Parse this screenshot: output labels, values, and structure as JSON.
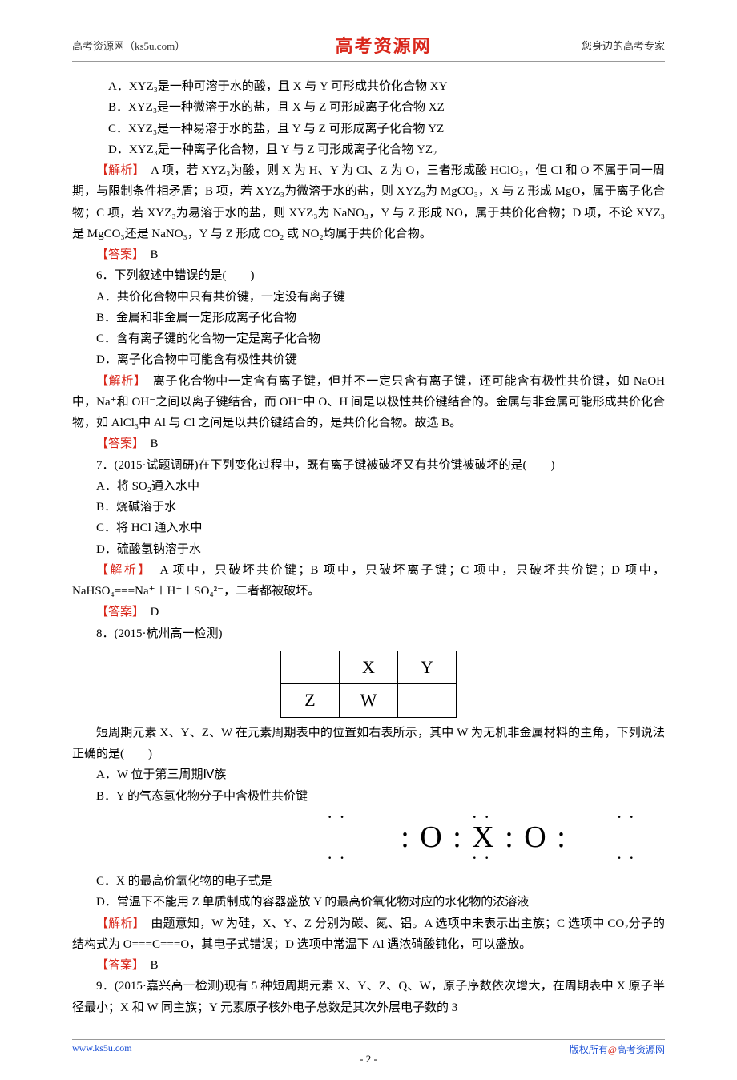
{
  "header": {
    "left": "高考资源网（ks5u.com）",
    "center": "高考资源网",
    "right": "您身边的高考专家"
  },
  "q5": {
    "a": "A．XYZ₃是一种可溶于水的酸，且 X 与 Y 可形成共价化合物 XY",
    "b": "B．XYZ₃是一种微溶于水的盐，且 X 与 Z 可形成离子化合物 XZ",
    "c": "C．XYZ₃是一种易溶于水的盐，且 Y 与 Z 可形成离子化合物 YZ",
    "d": "D．XYZ₃是一种离子化合物，且 Y 与 Z 可形成离子化合物 YZ₂",
    "jiexi_label": "【解析】",
    "jiexi": "　A 项，若 XYZ₃为酸，则 X 为 H、Y 为 Cl、Z 为 O，三者形成酸 HClO₃，但 Cl 和 O 不属于同一周期，与限制条件相矛盾；B 项，若 XYZ₃为微溶于水的盐，则 XYZ₃为 MgCO₃，X 与 Z 形成 MgO，属于离子化合物；C 项，若 XYZ₃为易溶于水的盐，则 XYZ₃为 NaNO₃，Y 与 Z 形成 NO，属于共价化合物；D 项，不论 XYZ₃是 MgCO₃还是 NaNO₃，Y 与 Z 形成 CO₂ 或 NO₂均属于共价化合物。",
    "daan_label": "【答案】",
    "daan": "　B"
  },
  "q6": {
    "stem": "6．下列叙述中错误的是(　　)",
    "a": "A．共价化合物中只有共价键，一定没有离子键",
    "b": "B．金属和非金属一定形成离子化合物",
    "c": "C．含有离子键的化合物一定是离子化合物",
    "d": "D．离子化合物中可能含有极性共价键",
    "jiexi_label": "【解析】",
    "jiexi": "　离子化合物中一定含有离子键，但并不一定只含有离子键，还可能含有极性共价键，如 NaOH 中，Na⁺和 OH⁻之间以离子键结合，而 OH⁻中 O、H 间是以极性共价键结合的。金属与非金属可能形成共价化合物，如 AlCl₃中 Al 与 Cl 之间是以共价键结合的，是共价化合物。故选 B。",
    "daan_label": "【答案】",
    "daan": "　B"
  },
  "q7": {
    "stem": "7．(2015·试题调研)在下列变化过程中，既有离子键被破坏又有共价键被破坏的是(　　)",
    "a": "A．将 SO₂通入水中",
    "b": "B．烧碱溶于水",
    "c": "C．将 HCl 通入水中",
    "d": "D．硫酸氢钠溶于水",
    "jiexi_label": "【解析】",
    "jiexi": "　A 项中，只破坏共价键；B 项中，只破坏离子键；C 项中，只破坏共价键；D 项中，NaHSO₄===Na⁺＋H⁺＋SO₄²⁻，二者都被破坏。",
    "daan_label": "【答案】",
    "daan": "　D"
  },
  "q8": {
    "stem": "8．(2015·杭州高一检测)",
    "table": {
      "r1c1": "",
      "r1c2": "X",
      "r1c3": "Y",
      "r2c1": "Z",
      "r2c2": "W",
      "r2c3": ""
    },
    "para": "短周期元素 X、Y、Z、W 在元素周期表中的位置如右表所示，其中 W 为无机非金属材料的主角，下列说法正确的是(　　)",
    "a": "A．W 位于第三周期Ⅳ族",
    "b": "B．Y 的气态氢化物分子中含极性共价键",
    "lewis_line1": "··　　　　　··　　　　　··",
    "lewis_line2": ": O : X : O :",
    "lewis_line3": "··　　　　　··　　　　　··",
    "c": "C．X 的最高价氧化物的电子式是",
    "d": "D．常温下不能用 Z 单质制成的容器盛放 Y 的最高价氧化物对应的水化物的浓溶液",
    "jiexi_label": "【解析】",
    "jiexi": "　由题意知，W 为硅，X、Y、Z 分别为碳、氮、铝。A 选项中未表示出主族；C 选项中 CO₂分子的结构式为 O===C===O，其电子式错误；D 选项中常温下 Al 遇浓硝酸钝化，可以盛放。",
    "daan_label": "【答案】",
    "daan": "　B"
  },
  "q9": {
    "stem": "9．(2015·嘉兴高一检测)现有 5 种短周期元素 X、Y、Z、Q、W，原子序数依次增大，在周期表中 X 原子半径最小；X 和 W 同主族；Y 元素原子核外电子总数是其次外层电子数的 3"
  },
  "footer": {
    "left": "www.ks5u.com",
    "right_pre": "版权所有",
    "right_at": "@",
    "right_post": "高考资源网",
    "pagenum": "- 2 -"
  },
  "colors": {
    "red": "#d9271b",
    "blue": "#1a4fd6",
    "text": "#000000",
    "rule": "#999999",
    "bg": "#ffffff"
  }
}
